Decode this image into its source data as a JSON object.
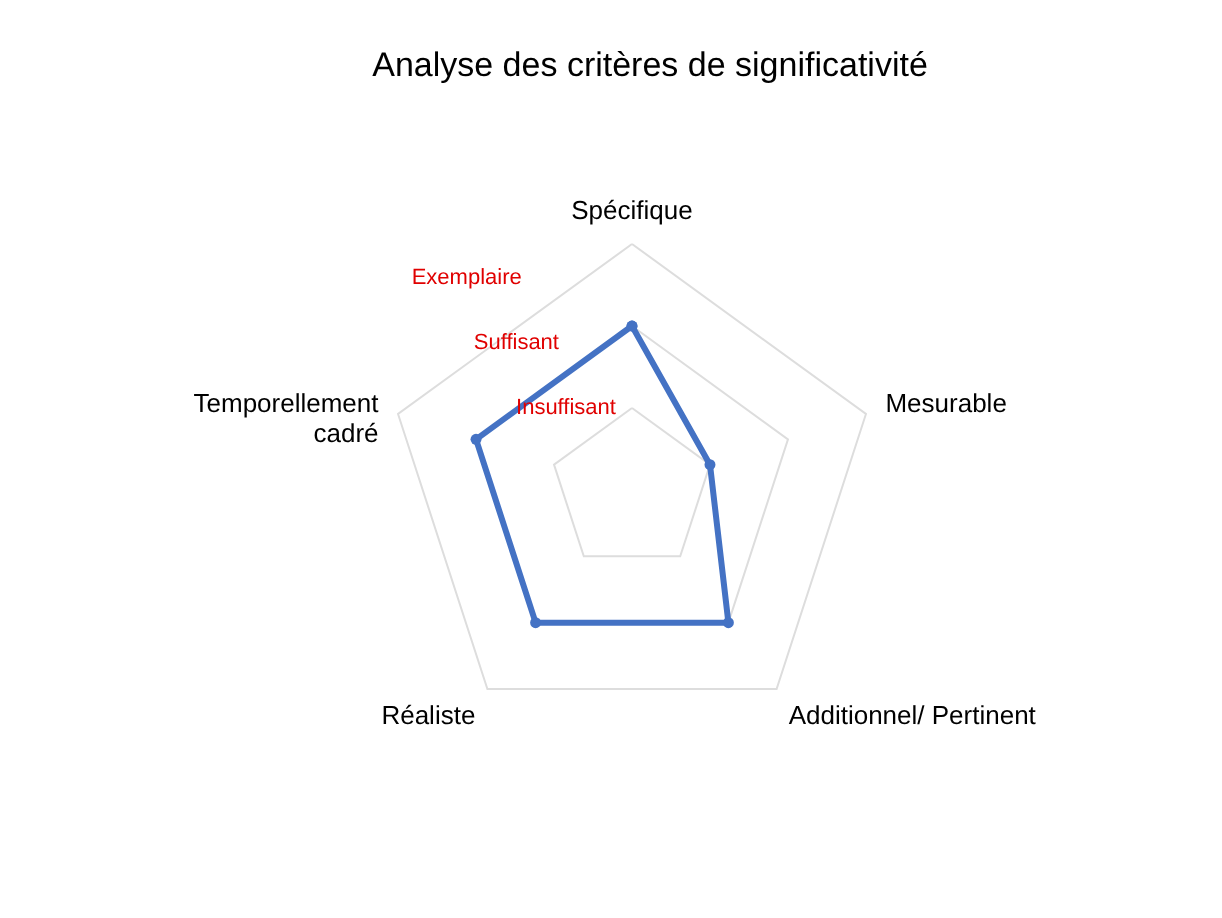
{
  "chart_data": {
    "type": "radar",
    "title": "Analyse des critères de significativité",
    "categories": [
      "Spécifique",
      "Mesurable",
      "Additionnel/ Pertinent",
      "Réaliste",
      "Temporellement\ncadré"
    ],
    "series": [
      {
        "color": "#4472c4",
        "values": [
          2,
          1,
          2,
          2,
          2
        ]
      }
    ],
    "ylim": [
      0,
      3
    ],
    "yticks": [
      {
        "value": 1,
        "label": "Insuffisant"
      },
      {
        "value": 2,
        "label": "Suffisant"
      },
      {
        "value": 3,
        "label": "Exemplaire"
      }
    ],
    "grid": true,
    "marker": "circle",
    "line_style": "solid"
  }
}
